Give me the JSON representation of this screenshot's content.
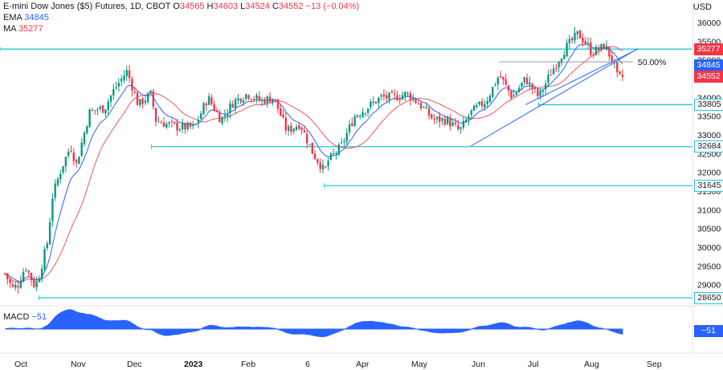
{
  "header": {
    "symbol_line": "E-mini Dow Jones ($5) Futures, 1D, CBOT",
    "ohlc": {
      "o_label": "O",
      "o": "34565",
      "h_label": "H",
      "h": "34603",
      "l_label": "L",
      "l": "34524",
      "c_label": "C",
      "c": "34552",
      "change": "−13 (−0.04%)"
    },
    "ema_label": "EMA",
    "ema_value": "34845",
    "ma_label": "MA",
    "ma_value": "35277"
  },
  "currency": "USD",
  "fib_label": "50.00%",
  "macd": {
    "label": "MACD",
    "value": "−51",
    "tag": "−51"
  },
  "price_tags": [
    {
      "value": "35289",
      "kind": "level"
    },
    {
      "value": "35277",
      "kind": "ma"
    },
    {
      "value": "34845",
      "kind": "ema"
    },
    {
      "value": "34552",
      "kind": "last"
    },
    {
      "value": "33805",
      "kind": "level"
    },
    {
      "value": "32684",
      "kind": "level"
    },
    {
      "value": "31645",
      "kind": "level"
    },
    {
      "value": "28650",
      "kind": "level"
    }
  ],
  "colors": {
    "up": "#089981",
    "down": "#f23645",
    "ema": "#2962ff",
    "ma": "#f7525f",
    "level": "#26c6da",
    "macd_fill": "#2962ff",
    "trend": "#2962ff"
  },
  "chart_data": {
    "type": "candlestick",
    "title": "E-mini Dow Jones ($5) Futures, 1D, CBOT",
    "ylabel": "USD",
    "ylim": [
      28500,
      36300
    ],
    "y_ticks": [
      29000,
      29500,
      30000,
      30500,
      31000,
      31500,
      32000,
      32500,
      33000,
      33500,
      34000,
      34500,
      35000,
      35500,
      36000
    ],
    "x_ticks": [
      "Oct",
      "Nov",
      "Dec",
      "2023",
      "Feb",
      "6",
      "Apr",
      "May",
      "Jun",
      "Jul",
      "Aug",
      "Sep"
    ],
    "horizontal_levels": [
      35289,
      33805,
      32684,
      31645,
      28650
    ],
    "trendlines": [
      {
        "from": [
          "Jun",
          32700
        ],
        "to": [
          "Aug",
          35300
        ]
      }
    ],
    "fib_level": {
      "label": "50.00%",
      "value": 34950
    },
    "series": [
      {
        "name": "EMA",
        "last": 34845
      },
      {
        "name": "MA",
        "last": 35277
      }
    ],
    "close_path": [
      [
        "Sep 26",
        29300
      ],
      [
        "Sep 30",
        28900
      ],
      [
        "Oct 3",
        29000
      ],
      [
        "Oct 7",
        29500
      ],
      [
        "Oct 12",
        28950
      ],
      [
        "Oct 14",
        29200
      ],
      [
        "Oct 19",
        30200
      ],
      [
        "Oct 21",
        31300
      ],
      [
        "Oct 26",
        32100
      ],
      [
        "Oct 31",
        32700
      ],
      [
        "Nov 3",
        32200
      ],
      [
        "Nov 10",
        33600
      ],
      [
        "Nov 15",
        33700
      ],
      [
        "Nov 18",
        33700
      ],
      [
        "Nov 23",
        34200
      ],
      [
        "Nov 30",
        34700
      ],
      [
        "Dec 2",
        34400
      ],
      [
        "Dec 6",
        33800
      ],
      [
        "Dec 13",
        34100
      ],
      [
        "Dec 15",
        33400
      ],
      [
        "Dec 20",
        33300
      ],
      [
        "Dec 28",
        33200
      ],
      [
        "Jan 5",
        33200
      ],
      [
        "Jan 12",
        34000
      ],
      [
        "Jan 19",
        33400
      ],
      [
        "Jan 26",
        33900
      ],
      [
        "Feb 2",
        34100
      ],
      [
        "Feb 9",
        33900
      ],
      [
        "Feb 16",
        34000
      ],
      [
        "Feb 23",
        33100
      ],
      [
        "Mar 2",
        33300
      ],
      [
        "Mar 9",
        32500
      ],
      [
        "Mar 13",
        32200
      ],
      [
        "Mar 15",
        32000
      ],
      [
        "Mar 17",
        32300
      ],
      [
        "Mar 24",
        32700
      ],
      [
        "Mar 31",
        33500
      ],
      [
        "Apr 6",
        33700
      ],
      [
        "Apr 14",
        34000
      ],
      [
        "Apr 21",
        34000
      ],
      [
        "Apr 28",
        34100
      ],
      [
        "May 5",
        33800
      ],
      [
        "May 12",
        33400
      ],
      [
        "May 19",
        33400
      ],
      [
        "May 26",
        33100
      ],
      [
        "Jun 1",
        33600
      ],
      [
        "Jun 9",
        33900
      ],
      [
        "Jun 16",
        34600
      ],
      [
        "Jun 23",
        34000
      ],
      [
        "Jun 30",
        34500
      ],
      [
        "Jul 7",
        34000
      ],
      [
        "Jul 14",
        34700
      ],
      [
        "Jul 21",
        35300
      ],
      [
        "Jul 28",
        35700
      ],
      [
        "Aug 2",
        35400
      ],
      [
        "Aug 4",
        35200
      ],
      [
        "Aug 9",
        35300
      ],
      [
        "Aug 11",
        35400
      ],
      [
        "Aug 16",
        34900
      ],
      [
        "Aug 18",
        34500
      ],
      [
        "Aug 21",
        34552
      ]
    ],
    "macd": {
      "label": "MACD",
      "last": -51
    }
  }
}
